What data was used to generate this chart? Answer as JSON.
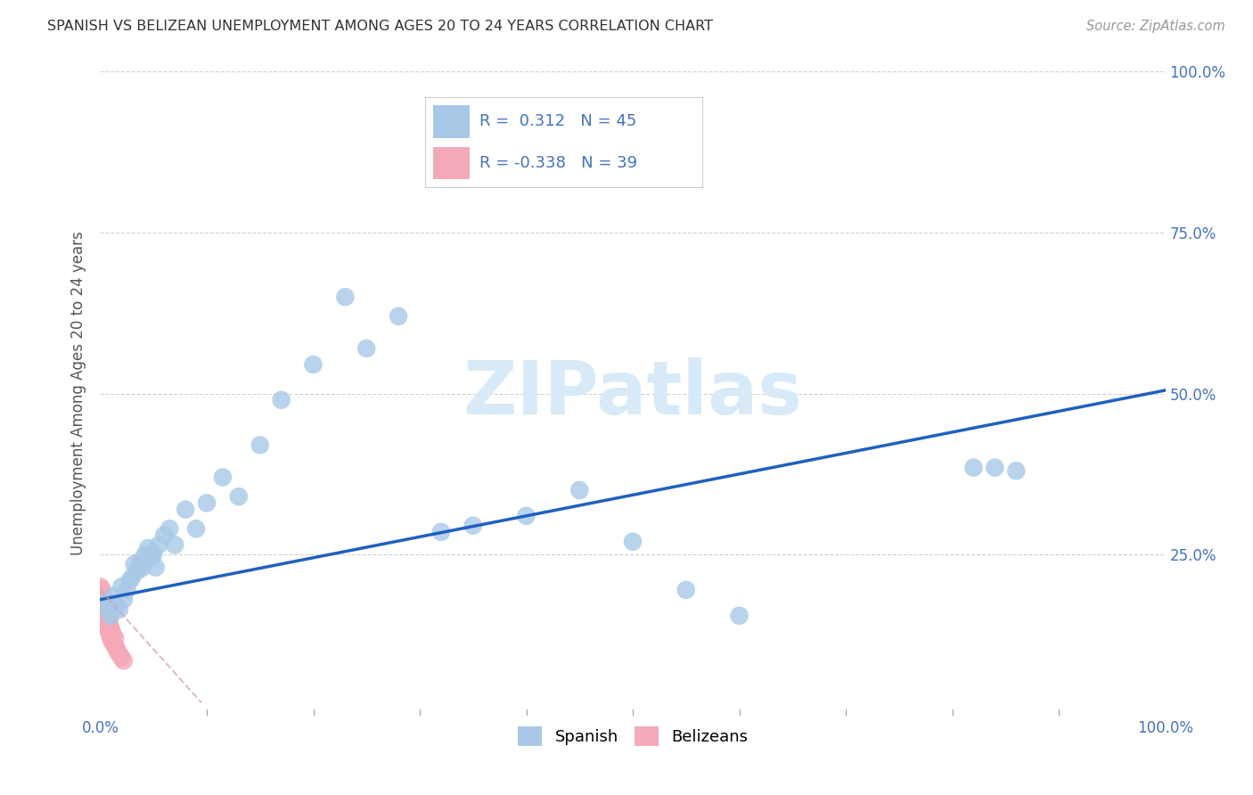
{
  "title": "SPANISH VS BELIZEAN UNEMPLOYMENT AMONG AGES 20 TO 24 YEARS CORRELATION CHART",
  "source": "Source: ZipAtlas.com",
  "ylabel": "Unemployment Among Ages 20 to 24 years",
  "xlim": [
    0.0,
    1.0
  ],
  "ylim": [
    0.0,
    1.0
  ],
  "xticks": [
    0.0,
    0.1,
    0.2,
    0.3,
    0.4,
    0.5,
    0.6,
    0.7,
    0.8,
    0.9,
    1.0
  ],
  "yticks": [
    0.0,
    0.25,
    0.5,
    0.75,
    1.0
  ],
  "xticklabels_show": [
    "0.0%",
    "",
    "",
    "",
    "",
    "",
    "",
    "",
    "",
    "",
    "100.0%"
  ],
  "yticklabels_right": [
    "",
    "25.0%",
    "50.0%",
    "75.0%",
    "100.0%"
  ],
  "spanish_color": "#a8c8e8",
  "belizean_color": "#f4a8b8",
  "trend_spanish_color": "#2060c0",
  "trend_belizean_color": "#d0a0a8",
  "watermark_color": "#d8eaf8",
  "legend_r_spanish": "0.312",
  "legend_n_spanish": "45",
  "legend_r_belizean": "-0.338",
  "legend_n_belizean": "39",
  "trend_sp_x0": 0.0,
  "trend_sp_y0": 0.18,
  "trend_sp_x1": 1.0,
  "trend_sp_y1": 0.505,
  "trend_bz_x0": 0.0,
  "trend_bz_y0": 0.195,
  "trend_bz_x1": 0.095,
  "trend_bz_y1": 0.02,
  "spanish_x": [
    0.005,
    0.008,
    0.01,
    0.012,
    0.015,
    0.018,
    0.02,
    0.022,
    0.025,
    0.028,
    0.03,
    0.032,
    0.035,
    0.038,
    0.04,
    0.042,
    0.045,
    0.048,
    0.05,
    0.052,
    0.055,
    0.06,
    0.065,
    0.07,
    0.08,
    0.09,
    0.1,
    0.115,
    0.13,
    0.15,
    0.17,
    0.2,
    0.23,
    0.25,
    0.28,
    0.32,
    0.35,
    0.4,
    0.45,
    0.5,
    0.55,
    0.6,
    0.82,
    0.84,
    0.86
  ],
  "spanish_y": [
    0.175,
    0.165,
    0.155,
    0.185,
    0.17,
    0.165,
    0.2,
    0.18,
    0.195,
    0.21,
    0.215,
    0.235,
    0.225,
    0.24,
    0.23,
    0.25,
    0.26,
    0.245,
    0.25,
    0.23,
    0.265,
    0.28,
    0.29,
    0.265,
    0.32,
    0.29,
    0.33,
    0.37,
    0.34,
    0.42,
    0.49,
    0.545,
    0.65,
    0.57,
    0.62,
    0.285,
    0.295,
    0.31,
    0.35,
    0.27,
    0.195,
    0.155,
    0.385,
    0.385,
    0.38
  ],
  "belizean_x": [
    0.0,
    0.0,
    0.001,
    0.001,
    0.001,
    0.002,
    0.002,
    0.002,
    0.003,
    0.003,
    0.003,
    0.004,
    0.004,
    0.004,
    0.004,
    0.005,
    0.005,
    0.005,
    0.006,
    0.006,
    0.006,
    0.007,
    0.007,
    0.008,
    0.008,
    0.009,
    0.009,
    0.01,
    0.01,
    0.011,
    0.011,
    0.012,
    0.013,
    0.014,
    0.015,
    0.016,
    0.018,
    0.02,
    0.022
  ],
  "belizean_y": [
    0.185,
    0.2,
    0.175,
    0.19,
    0.16,
    0.195,
    0.175,
    0.165,
    0.185,
    0.17,
    0.155,
    0.18,
    0.165,
    0.15,
    0.175,
    0.16,
    0.145,
    0.17,
    0.155,
    0.14,
    0.165,
    0.15,
    0.135,
    0.145,
    0.13,
    0.14,
    0.125,
    0.135,
    0.12,
    0.13,
    0.115,
    0.125,
    0.11,
    0.12,
    0.105,
    0.1,
    0.095,
    0.09,
    0.085
  ]
}
